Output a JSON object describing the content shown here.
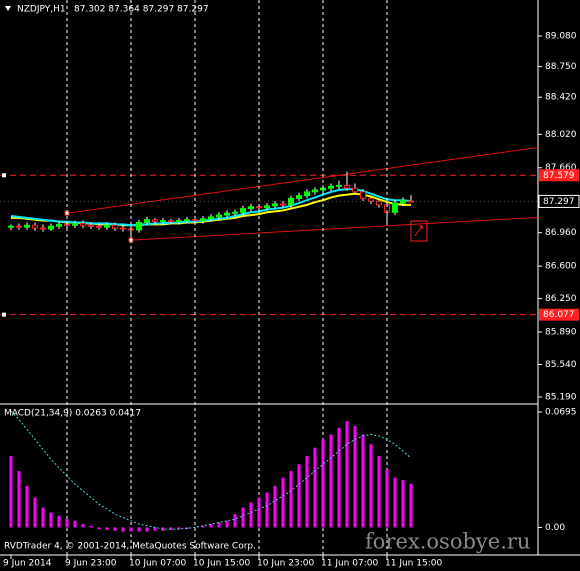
{
  "chart_data": [
    {
      "type": "candlestick",
      "symbol": "NZDJPY,H1",
      "ohlc_text": "87.302 87.364 87.297 87.297",
      "categories": [
        "9 Jun 2014",
        null,
        null,
        null,
        null,
        null,
        null,
        "9 Jun 23:00",
        null,
        null,
        null,
        null,
        null,
        null,
        null,
        "10 Jun 07:00",
        null,
        null,
        null,
        null,
        null,
        null,
        null,
        "10 Jun 15:00",
        null,
        null,
        null,
        null,
        null,
        null,
        null,
        "10 Jun 23:00",
        null,
        null,
        null,
        null,
        null,
        null,
        null,
        "11 Jun 07:00",
        null,
        null,
        null,
        null,
        null,
        null,
        null,
        "11 Jun 15:00",
        null,
        null,
        null
      ],
      "open": [
        87.02,
        87.03,
        87.02,
        87.04,
        87.01,
        87.0,
        87.03,
        87.05,
        87.04,
        87.06,
        87.04,
        87.03,
        87.02,
        87.04,
        87.01,
        87.0,
        86.99,
        87.07,
        87.1,
        87.08,
        87.09,
        87.08,
        87.09,
        87.1,
        87.09,
        87.11,
        87.13,
        87.15,
        87.17,
        87.18,
        87.22,
        87.24,
        87.23,
        87.25,
        87.27,
        87.26,
        87.33,
        87.36,
        87.4,
        87.42,
        87.44,
        87.46,
        87.47,
        87.44,
        87.4,
        87.33,
        87.3,
        87.26,
        87.18,
        87.28,
        87.302
      ],
      "high": [
        87.05,
        87.06,
        87.07,
        87.07,
        87.05,
        87.06,
        87.08,
        87.08,
        87.09,
        87.09,
        87.07,
        87.06,
        87.07,
        87.07,
        87.04,
        87.03,
        87.1,
        87.13,
        87.12,
        87.12,
        87.11,
        87.12,
        87.13,
        87.13,
        87.14,
        87.16,
        87.18,
        87.2,
        87.21,
        87.25,
        87.27,
        87.27,
        87.28,
        87.3,
        87.3,
        87.36,
        87.39,
        87.43,
        87.45,
        87.47,
        87.49,
        87.52,
        87.62,
        87.49,
        87.43,
        87.36,
        87.33,
        87.29,
        87.31,
        87.34,
        87.364
      ],
      "low": [
        86.99,
        86.99,
        86.99,
        86.98,
        86.97,
        86.98,
        87.0,
        87.01,
        87.01,
        87.01,
        87.0,
        86.99,
        86.99,
        86.98,
        86.97,
        86.9,
        86.96,
        87.04,
        87.05,
        87.05,
        87.05,
        87.05,
        87.06,
        87.06,
        87.06,
        87.08,
        87.1,
        87.12,
        87.14,
        87.15,
        87.19,
        87.2,
        87.2,
        87.22,
        87.23,
        87.23,
        87.3,
        87.33,
        87.37,
        87.39,
        87.41,
        87.43,
        87.41,
        87.37,
        87.3,
        87.27,
        87.23,
        87.06,
        87.15,
        87.25,
        87.297
      ],
      "close": [
        87.03,
        87.02,
        87.04,
        87.01,
        87.0,
        87.03,
        87.05,
        87.04,
        87.06,
        87.04,
        87.03,
        87.02,
        87.04,
        87.01,
        87.0,
        86.99,
        87.07,
        87.1,
        87.08,
        87.09,
        87.08,
        87.09,
        87.1,
        87.09,
        87.11,
        87.13,
        87.15,
        87.17,
        87.18,
        87.22,
        87.24,
        87.23,
        87.25,
        87.27,
        87.26,
        87.33,
        87.36,
        87.4,
        87.42,
        87.44,
        87.46,
        87.47,
        87.44,
        87.4,
        87.33,
        87.3,
        87.26,
        87.18,
        87.28,
        87.31,
        87.297
      ],
      "up_color": "#00ff00",
      "down_color": "#ff2020",
      "wick_color": "#ffffff",
      "ma": [
        {
          "color": "#ffff00",
          "values": [
            87.12,
            87.12,
            87.11,
            87.1,
            87.09,
            87.09,
            87.08,
            87.07,
            87.07,
            87.06,
            87.06,
            87.05,
            87.05,
            87.05,
            87.04,
            87.04,
            87.04,
            87.05,
            87.05,
            87.05,
            87.06,
            87.06,
            87.07,
            87.07,
            87.08,
            87.09,
            87.1,
            87.11,
            87.12,
            87.14,
            87.15,
            87.16,
            87.18,
            87.19,
            87.2,
            87.22,
            87.24,
            87.26,
            87.29,
            87.31,
            87.34,
            87.36,
            87.37,
            87.38,
            87.37,
            87.35,
            87.32,
            87.29,
            87.27,
            87.26,
            87.26
          ]
        },
        {
          "color": "#00e5ff",
          "values": [
            87.14,
            87.13,
            87.12,
            87.11,
            87.1,
            87.09,
            87.08,
            87.08,
            87.07,
            87.07,
            87.06,
            87.06,
            87.06,
            87.05,
            87.05,
            87.04,
            87.05,
            87.05,
            87.06,
            87.06,
            87.07,
            87.07,
            87.08,
            87.08,
            87.09,
            87.1,
            87.11,
            87.12,
            87.14,
            87.16,
            87.18,
            87.19,
            87.21,
            87.22,
            87.23,
            87.25,
            87.28,
            87.31,
            87.34,
            87.37,
            87.4,
            87.42,
            87.43,
            87.43,
            87.41,
            87.38,
            87.35,
            87.32,
            87.31,
            87.31,
            87.3
          ]
        }
      ],
      "hlines": {
        "color": "#ff2020",
        "values": [
          87.579,
          86.077
        ]
      },
      "trendlines": {
        "color": "#e01010",
        "lines": [
          {
            "x": [
              7,
              71
            ],
            "y": [
              87.17,
              87.94
            ]
          },
          {
            "x": [
              15,
              71
            ],
            "y": [
              86.88,
              87.15
            ]
          }
        ]
      },
      "current": 87.297,
      "ylim": [
        85.125,
        89.446
      ],
      "yticks": [
        {
          "value": 89.08,
          "label": "89.080"
        },
        {
          "value": 88.75,
          "label": "88.750"
        },
        {
          "value": 88.42,
          "label": "88.420"
        },
        {
          "value": 88.02,
          "label": "88.020"
        },
        {
          "value": 87.66,
          "label": "87.660"
        },
        {
          "value": 86.96,
          "label": "86.960"
        },
        {
          "value": 86.6,
          "label": "86.600"
        },
        {
          "value": 86.25,
          "label": "86.250"
        },
        {
          "value": 85.89,
          "label": "85.890"
        },
        {
          "value": 85.54,
          "label": "85.540"
        },
        {
          "value": 85.19,
          "label": "85.190"
        }
      ],
      "grid": true
    },
    {
      "type": "macd",
      "label": "MACD(21,34,9) 0.0263 0.0417",
      "color": "#ff00ff",
      "values": [
        0.043,
        0.034,
        0.025,
        0.018,
        0.012,
        0.009,
        0.007,
        0.005,
        0.004,
        0.002,
        0.001,
        -0.001,
        -0.0015,
        -0.002,
        -0.0025,
        -0.0025,
        -0.0025,
        -0.0025,
        -0.002,
        -0.002,
        -0.0015,
        -0.001,
        -0.001,
        0,
        0.001,
        0.002,
        0.003,
        0.004,
        0.008,
        0.012,
        0.015,
        0.018,
        0.021,
        0.025,
        0.03,
        0.034,
        0.038,
        0.043,
        0.048,
        0.053,
        0.056,
        0.06,
        0.064,
        0.061,
        0.056,
        0.05,
        0.043,
        0.035,
        0.03,
        0.0285,
        0.0263
      ],
      "signal": {
        "color": "#40e0e0",
        "values": [
          0.07,
          0.065,
          0.059,
          0.053,
          0.047,
          0.041,
          0.036,
          0.031,
          0.026,
          0.022,
          0.018,
          0.014,
          0.011,
          0.008,
          0.006,
          0.004,
          0.002,
          0.001,
          0,
          -0.001,
          -0.001,
          -0.001,
          -0.0005,
          0,
          0.001,
          0.002,
          0.003,
          0.004,
          0.005,
          0.007,
          0.009,
          0.011,
          0.013,
          0.016,
          0.019,
          0.022,
          0.026,
          0.03,
          0.034,
          0.038,
          0.042,
          0.046,
          0.05,
          0.053,
          0.055,
          0.056,
          0.055,
          0.053,
          0.05,
          0.046,
          0.0417
        ]
      },
      "ylim": [
        -0.0166,
        0.0737
      ],
      "yticks": [
        0.0695,
        {
          "value": 0,
          "label": "0.00"
        }
      ]
    }
  ],
  "footer": {
    "copyright": "RVDTrader 4, © 2001-2014, MetaQuotes Software Corp.",
    "watermark": "forex.osobye.ru"
  }
}
